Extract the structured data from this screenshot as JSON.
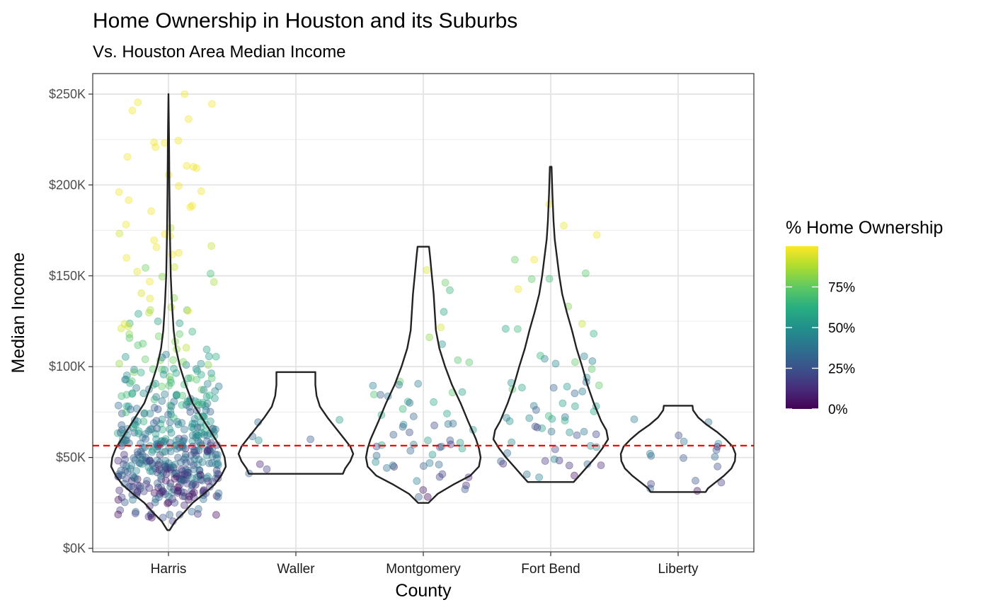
{
  "chart_data": {
    "type": "scatter",
    "overlay": "violin",
    "title": "Home Ownership in Houston and its Suburbs",
    "subtitle": "Vs. Houston Area Median Income",
    "xlabel": "County",
    "ylabel": "Median Income",
    "categories": [
      "Harris",
      "Waller",
      "Montgomery",
      "Fort Bend",
      "Liberty"
    ],
    "highlight_category": "Harris",
    "highlight_color": "#ff0000",
    "ylim": [
      0,
      250000
    ],
    "yticks": [
      0,
      50000,
      100000,
      150000,
      200000,
      250000
    ],
    "ytick_labels": [
      "$0K",
      "$50K",
      "$100K",
      "$150K",
      "$200K",
      "$250K"
    ],
    "reference_line": {
      "y": 56500,
      "color": "#ff0000",
      "style": "dashed"
    },
    "grid": true,
    "color_scale": "viridis",
    "legend": {
      "title": "% Home Ownership",
      "placement": "right",
      "ticks": [
        0,
        25,
        50,
        75
      ],
      "tick_labels": [
        "0%",
        "25%",
        "50%",
        "75%"
      ],
      "range": [
        0,
        100
      ]
    },
    "violins": [
      {
        "category": "Harris",
        "min": 10000,
        "max": 250000,
        "profile": [
          [
            10000,
            0.02
          ],
          [
            15000,
            0.12
          ],
          [
            20000,
            0.28
          ],
          [
            25000,
            0.42
          ],
          [
            30000,
            0.62
          ],
          [
            35000,
            0.8
          ],
          [
            40000,
            0.92
          ],
          [
            45000,
            1.0
          ],
          [
            50000,
            0.98
          ],
          [
            55000,
            0.92
          ],
          [
            60000,
            0.82
          ],
          [
            70000,
            0.62
          ],
          [
            80000,
            0.42
          ],
          [
            90000,
            0.3
          ],
          [
            100000,
            0.2
          ],
          [
            110000,
            0.13
          ],
          [
            120000,
            0.09
          ],
          [
            135000,
            0.06
          ],
          [
            150000,
            0.04
          ],
          [
            175000,
            0.025
          ],
          [
            200000,
            0.016
          ],
          [
            225000,
            0.01
          ],
          [
            250000,
            0.0
          ]
        ]
      },
      {
        "category": "Waller",
        "min": 41000,
        "max": 97000,
        "profile": [
          [
            41000,
            0.82
          ],
          [
            44000,
            0.86
          ],
          [
            48000,
            0.95
          ],
          [
            52000,
            1.0
          ],
          [
            56000,
            0.95
          ],
          [
            60000,
            0.85
          ],
          [
            66000,
            0.7
          ],
          [
            72000,
            0.55
          ],
          [
            78000,
            0.42
          ],
          [
            84000,
            0.36
          ],
          [
            90000,
            0.34
          ],
          [
            94000,
            0.34
          ],
          [
            97000,
            0.34
          ]
        ]
      },
      {
        "category": "Montgomery",
        "min": 25000,
        "max": 166000,
        "profile": [
          [
            25000,
            0.09
          ],
          [
            30000,
            0.25
          ],
          [
            35000,
            0.52
          ],
          [
            40000,
            0.82
          ],
          [
            45000,
            0.97
          ],
          [
            50000,
            1.0
          ],
          [
            55000,
            0.97
          ],
          [
            60000,
            0.92
          ],
          [
            65000,
            0.85
          ],
          [
            70000,
            0.78
          ],
          [
            80000,
            0.65
          ],
          [
            90000,
            0.5
          ],
          [
            100000,
            0.38
          ],
          [
            110000,
            0.28
          ],
          [
            120000,
            0.22
          ],
          [
            130000,
            0.2
          ],
          [
            140000,
            0.18
          ],
          [
            150000,
            0.15
          ],
          [
            160000,
            0.12
          ],
          [
            166000,
            0.1
          ]
        ]
      },
      {
        "category": "Fort Bend",
        "min": 36500,
        "max": 210000,
        "profile": [
          [
            36500,
            0.4
          ],
          [
            40000,
            0.5
          ],
          [
            45000,
            0.64
          ],
          [
            50000,
            0.78
          ],
          [
            55000,
            0.9
          ],
          [
            60000,
            1.0
          ],
          [
            65000,
            0.97
          ],
          [
            70000,
            0.88
          ],
          [
            80000,
            0.75
          ],
          [
            90000,
            0.64
          ],
          [
            100000,
            0.55
          ],
          [
            110000,
            0.45
          ],
          [
            120000,
            0.37
          ],
          [
            130000,
            0.28
          ],
          [
            140000,
            0.2
          ],
          [
            150000,
            0.15
          ],
          [
            160000,
            0.11
          ],
          [
            170000,
            0.07
          ],
          [
            180000,
            0.05
          ],
          [
            195000,
            0.03
          ],
          [
            210000,
            0.015
          ]
        ]
      },
      {
        "category": "Liberty",
        "min": 31000,
        "max": 78500,
        "profile": [
          [
            31000,
            0.48
          ],
          [
            33000,
            0.52
          ],
          [
            36000,
            0.64
          ],
          [
            40000,
            0.8
          ],
          [
            44000,
            0.93
          ],
          [
            48000,
            0.99
          ],
          [
            52000,
            1.0
          ],
          [
            56000,
            0.95
          ],
          [
            60000,
            0.83
          ],
          [
            64000,
            0.68
          ],
          [
            68000,
            0.5
          ],
          [
            72000,
            0.35
          ],
          [
            76000,
            0.26
          ],
          [
            78500,
            0.25
          ]
        ]
      }
    ],
    "scatter_spec": {
      "points_per_category": [
        520,
        8,
        62,
        68,
        17
      ],
      "seed": 12345,
      "ownership_income_correlation": "positive"
    }
  }
}
